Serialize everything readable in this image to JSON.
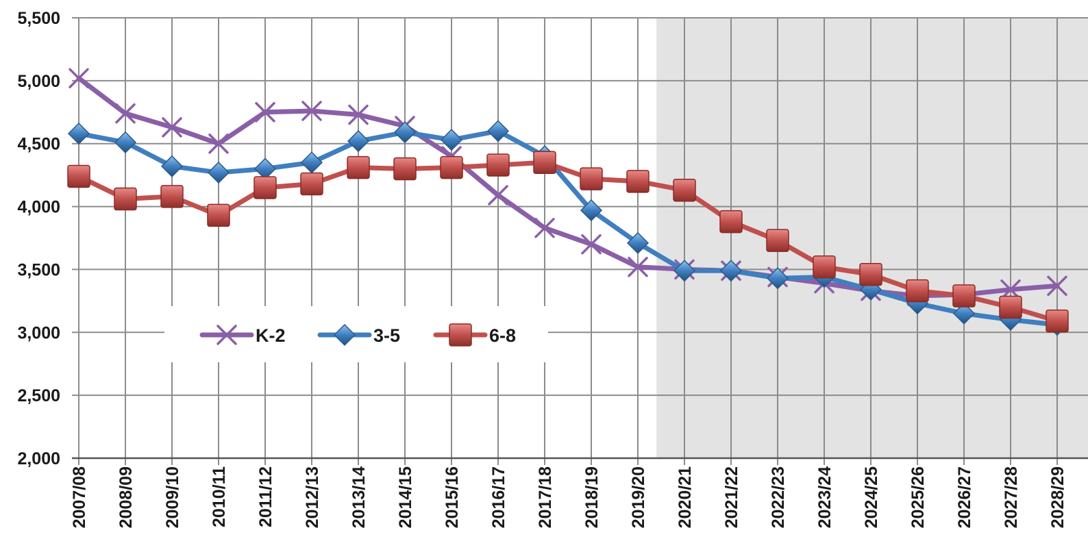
{
  "chart_data": {
    "type": "line",
    "title": "",
    "xlabel": "",
    "ylabel": "",
    "ylim": [
      2000,
      5500
    ],
    "y_ticks": [
      2000,
      2500,
      3000,
      3500,
      4000,
      4500,
      5000,
      5500
    ],
    "y_tick_labels": [
      "2,000",
      "2,500",
      "3,000",
      "3,500",
      "4,000",
      "4,500",
      "5,000",
      "5,500"
    ],
    "categories": [
      "2007/08",
      "2008/09",
      "2009/10",
      "2010/11",
      "2011/12",
      "2012/13",
      "2013/14",
      "2014/15",
      "2015/16",
      "2016/17",
      "2017/18",
      "2018/19",
      "2019/20",
      "2020/21",
      "2021/22",
      "2022/23",
      "2023/24",
      "2024/25",
      "2025/26",
      "2026/27",
      "2027/28",
      "2028/29"
    ],
    "projection_start_category": "2020/21",
    "grid": true,
    "legend_position": "lower-left",
    "series": [
      {
        "name": "K-2",
        "color": "#8a5fa8",
        "marker": "x",
        "values": [
          5020,
          4740,
          4630,
          4500,
          4750,
          4760,
          4730,
          4640,
          4400,
          4090,
          3830,
          3700,
          3520,
          3500,
          3490,
          3440,
          3390,
          3330,
          3290,
          3300,
          3340,
          3370
        ]
      },
      {
        "name": "3-5",
        "color": "#3f7fc0",
        "marker": "diamond",
        "values": [
          4580,
          4510,
          4320,
          4270,
          4300,
          4350,
          4520,
          4590,
          4530,
          4600,
          4400,
          3970,
          3710,
          3490,
          3490,
          3430,
          3440,
          3340,
          3230,
          3150,
          3100,
          3060
        ]
      },
      {
        "name": "6-8",
        "color": "#c0504d",
        "marker": "square",
        "values": [
          4240,
          4060,
          4080,
          3930,
          4150,
          4180,
          4310,
          4300,
          4310,
          4330,
          4350,
          4220,
          4200,
          4130,
          3880,
          3730,
          3520,
          3460,
          3330,
          3290,
          3200,
          3090
        ]
      }
    ]
  }
}
